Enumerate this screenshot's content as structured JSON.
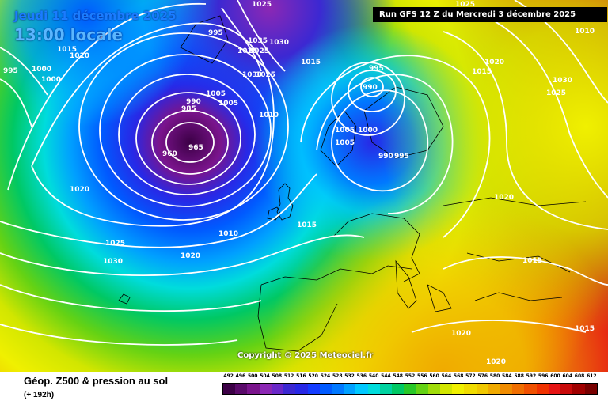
{
  "header": {
    "date": "Jeudi 11 décembre 2025",
    "time": "13:00 locale",
    "run": "Run GFS 12 Z du Mercredi 3 décembre 2025"
  },
  "copyright": "Copyright © 2025 Meteociel.fr",
  "footer": {
    "title": "Géop. Z500 & pression au sol",
    "subtitle": "(+ 192h)"
  },
  "legend": {
    "values": [
      "492",
      "496",
      "500",
      "504",
      "508",
      "512",
      "516",
      "520",
      "524",
      "528",
      "532",
      "536",
      "540",
      "544",
      "548",
      "552",
      "556",
      "560",
      "564",
      "568",
      "572",
      "576",
      "580",
      "584",
      "588",
      "592",
      "596",
      "600",
      "604",
      "608",
      "612"
    ],
    "colors": [
      "#3c0046",
      "#5a0a6a",
      "#7a148c",
      "#8c28b4",
      "#6a28c8",
      "#3c28d2",
      "#2828e6",
      "#143cff",
      "#005aff",
      "#0078ff",
      "#00a0ff",
      "#00c8ff",
      "#00dcdc",
      "#00d2a0",
      "#00c864",
      "#28c828",
      "#64d214",
      "#a0dc0a",
      "#d2e600",
      "#f0f000",
      "#f0dc00",
      "#f0c800",
      "#f0aa00",
      "#f08c00",
      "#f06e00",
      "#f05000",
      "#f03200",
      "#e61414",
      "#c80a0a",
      "#a00000",
      "#780000"
    ]
  },
  "pressure_labels": [
    {
      "text": "995",
      "x": 995,
      "y": 0
    },
    {
      "text": "1010",
      "x": 0,
      "y": 0
    },
    {
      "text": "1015",
      "x": 0,
      "y": 0
    },
    {
      "text": "1000",
      "x": 0,
      "y": 0
    },
    {
      "text": "1000",
      "x": 0,
      "y": 0
    },
    {
      "text": "995",
      "x": 0,
      "y": 0
    }
  ]
}
